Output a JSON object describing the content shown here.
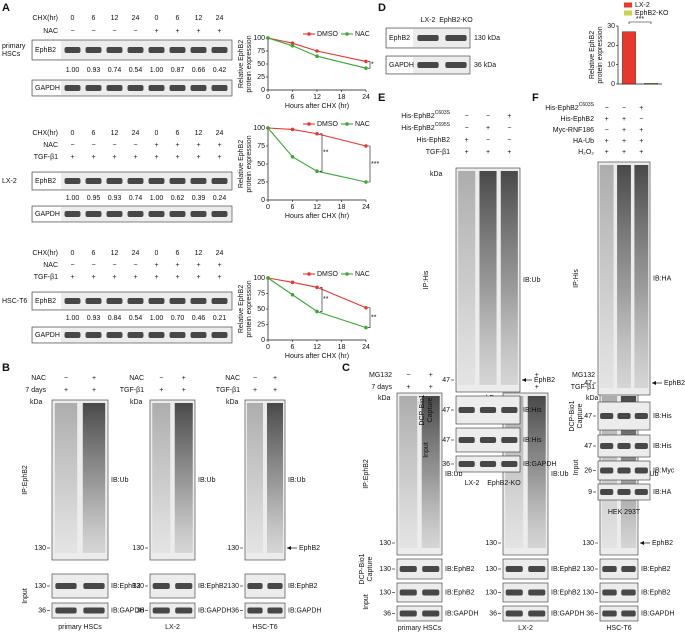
{
  "letters": [
    "A",
    "B",
    "C",
    "D",
    "E",
    "F"
  ],
  "panel_a": [
    {
      "cell": [
        "primary",
        "HSCs"
      ],
      "rows": [
        {
          "label": "CHX(hr)",
          "cells": [
            "0",
            "6",
            "12",
            "24",
            "0",
            "6",
            "12",
            "24"
          ]
        },
        {
          "label": "NAC",
          "cells": [
            "−",
            "−",
            "−",
            "−",
            "+",
            "+",
            "+",
            "+"
          ]
        }
      ],
      "boxes": [
        {
          "label": "EphB2"
        },
        {
          "label": "GAPDH"
        }
      ],
      "ratios": [
        "1.00",
        "0.93",
        "0.74",
        "0.54",
        "1.00",
        "0.87",
        "0.66",
        "0.42"
      ]
    },
    {
      "cell": "LX-2",
      "rows": [
        {
          "label": "CHX(hr)",
          "cells": [
            "0",
            "6",
            "12",
            "24",
            "0",
            "6",
            "12",
            "24"
          ]
        },
        {
          "label": "NAC",
          "cells": [
            "−",
            "−",
            "−",
            "−",
            "+",
            "+",
            "+",
            "+"
          ]
        },
        {
          "label": "TGF-β1",
          "cells": [
            "+",
            "+",
            "+",
            "+",
            "+",
            "+",
            "+",
            "+"
          ]
        }
      ],
      "boxes": [
        {
          "label": "EphB2"
        },
        {
          "label": "GAPDH"
        }
      ],
      "ratios": [
        "1.00",
        "0.95",
        "0.93",
        "0.74",
        "1.00",
        "0.62",
        "0.39",
        "0.24"
      ]
    },
    {
      "cell": "HSC-T6",
      "rows": [
        {
          "label": "CHX(hr)",
          "cells": [
            "0",
            "6",
            "12",
            "24",
            "0",
            "6",
            "12",
            "24"
          ]
        },
        {
          "label": "NAC",
          "cells": [
            "−",
            "−",
            "−",
            "−",
            "+",
            "+",
            "+",
            "+"
          ]
        },
        {
          "label": "TGF-β1",
          "cells": [
            "+",
            "+",
            "+",
            "+",
            "+",
            "+",
            "+",
            "+"
          ]
        }
      ],
      "boxes": [
        {
          "label": "EphB2"
        },
        {
          "label": "GAPDH"
        }
      ],
      "ratios": [
        "1.00",
        "0.93",
        "0.84",
        "0.54",
        "1.00",
        "0.70",
        "0.46",
        "0.21"
      ]
    }
  ],
  "panel_b": [
    {
      "rows": [
        {
          "label": "NAC",
          "cells": [
            "−",
            "+"
          ]
        },
        {
          "label": "7 days",
          "cells": [
            "+",
            "+"
          ]
        }
      ],
      "kda": "kDa",
      "boxes": [
        {
          "marker": "130",
          "right": "IB:Ub"
        },
        {
          "marker": "130",
          "right": "IB:EphB2"
        },
        {
          "marker": "36",
          "right": "IB:GAPDH"
        }
      ],
      "groups": [
        "IP:EphB2",
        "Input"
      ],
      "cell": "primary HSCs"
    },
    {
      "rows": [
        {
          "label": "NAC",
          "cells": [
            "−",
            "+"
          ]
        },
        {
          "label": "TGF-β1",
          "cells": [
            "+",
            "+"
          ]
        }
      ],
      "kda": "kDa",
      "boxes": [
        {
          "marker": "130",
          "right": "IB:Ub"
        },
        {
          "marker": "130",
          "right": "IB:EphB2"
        },
        {
          "marker": "36",
          "right": "IB:GAPDH"
        }
      ],
      "cell": "LX-2"
    },
    {
      "rows": [
        {
          "label": "NAC",
          "cells": [
            "−",
            "+"
          ]
        },
        {
          "label": "TGF-β1",
          "cells": [
            "+",
            "+"
          ]
        }
      ],
      "kda": "kDa",
      "boxes": [
        {
          "marker": "130",
          "right": "IB:Ub"
        },
        {
          "marker": "130",
          "right": "IB:EphB2"
        },
        {
          "marker": "36",
          "right": "IB:GAPDH"
        }
      ],
      "arrow": "EphB2",
      "cell": "HSC-T6"
    }
  ],
  "panel_c": [
    {
      "rows": [
        {
          "label": "MG132",
          "cells": [
            "−",
            "+"
          ]
        },
        {
          "label": "7 days",
          "cells": [
            "+",
            "+"
          ]
        }
      ],
      "kda": "kDa",
      "boxes": [
        {
          "marker": "130",
          "right": "IB:Ub"
        },
        {
          "marker": "130",
          "right": "IB:EphB2"
        },
        {
          "marker": "130",
          "right": "IB:EphB2"
        },
        {
          "marker": "36",
          "right": "IB:GAPDH"
        }
      ],
      "groups": [
        "IP:EphB2",
        [
          "DCP-Bio1",
          "Capture"
        ],
        "Input"
      ],
      "cell": "primary HSCs"
    },
    {
      "rows": [
        {
          "label": "MG132",
          "cells": [
            "−",
            "+"
          ]
        },
        {
          "label": "TGF-β1",
          "cells": [
            "+",
            "+"
          ]
        }
      ],
      "kda": "kDa",
      "boxes": [
        {
          "marker": "130",
          "right": "IB:Ub"
        },
        {
          "marker": "130",
          "right": "IB:EphB2"
        },
        {
          "marker": "130",
          "right": "IB:EphB2"
        },
        {
          "marker": "36",
          "right": "IB:GAPDH"
        }
      ],
      "cell": "LX-2"
    },
    {
      "rows": [
        {
          "label": "MG132",
          "cells": [
            "−",
            "+"
          ]
        },
        {
          "label": "TGF-β1",
          "cells": [
            "+",
            "+"
          ]
        }
      ],
      "kda": "kDa",
      "boxes": [
        {
          "marker": "130",
          "right": "IB:Ub"
        },
        {
          "marker": "130",
          "right": "IB:EphB2"
        },
        {
          "marker": "130",
          "right": "IB:EphB2"
        },
        {
          "marker": "36",
          "right": "IB:GAPDH"
        }
      ],
      "arrow": "EphB2",
      "cell": "HSC-T6"
    }
  ],
  "panel_d": {
    "rows": [
      {
        "cells": [
          "LX-2",
          "EphB2-KO"
        ]
      }
    ],
    "boxes": [
      {
        "label": "EphB2",
        "right": "130 kDa"
      },
      {
        "label": "GAPDH",
        "right": "36 kDa"
      }
    ]
  },
  "panel_e": {
    "rows": [
      {
        "label": {
          "base": "His-EphB2",
          "sup": "C603S"
        },
        "cells": [
          "−",
          "−",
          "+"
        ]
      },
      {
        "label": {
          "base": "His-EphB2",
          "sup": "C695S"
        },
        "cells": [
          "−",
          "+",
          "−"
        ]
      },
      {
        "label": "His-EphB2",
        "cells": [
          "+",
          "−",
          "−"
        ]
      },
      {
        "label": "TGF-β1",
        "cells": [
          "+",
          "+",
          "+"
        ]
      }
    ],
    "kda": "kDa",
    "boxes": [
      {
        "marker": "47",
        "right": "IB:Ub"
      },
      {
        "marker": "47",
        "right": "IB:His"
      },
      {
        "marker": "47",
        "right": "IB:His"
      },
      {
        "marker": "36",
        "right": "IB:GAPDH"
      }
    ],
    "arrow": "EphB2",
    "groups": [
      "IP:His",
      [
        "DCP-Bio1",
        "Capture"
      ],
      "Input"
    ],
    "lane_labels": [
      "LX-2",
      "EphB2-KO"
    ]
  },
  "panel_f": {
    "rows": [
      {
        "label": {
          "base": "His-EphB2",
          "sup": "C603S"
        },
        "cells": [
          "−",
          "−",
          "+"
        ]
      },
      {
        "label": "His-EphB2",
        "cells": [
          "+",
          "+",
          "−"
        ]
      },
      {
        "label": "Myc-RNF186",
        "cells": [
          "−",
          "+",
          "+"
        ]
      },
      {
        "label": "HA-Ub",
        "cells": [
          "+",
          "+",
          "+"
        ]
      },
      {
        "label": "H₂O₂",
        "cells": [
          "+",
          "+",
          "+"
        ]
      }
    ],
    "boxes": [
      {
        "marker": "47",
        "right": "IB:HA"
      },
      {
        "marker": "47",
        "right": "IB:His"
      },
      {
        "marker": "47",
        "right": "IB:His"
      },
      {
        "marker": "26",
        "right": "IB:Myc"
      },
      {
        "marker": "9",
        "right": "IB:HA"
      }
    ],
    "arrow": "EphB2",
    "groups": [
      "IP:His",
      [
        "DCP-Bio1",
        "Capture"
      ],
      "Input"
    ],
    "cell": "HEK 293T"
  },
  "chart_data": [
    {
      "type": "line",
      "x": [
        0,
        6,
        12,
        24
      ],
      "xlim": [
        0,
        24
      ],
      "xticks": [
        0,
        6,
        12,
        18,
        24
      ],
      "ylim": [
        0,
        100
      ],
      "yticks": [
        0,
        25,
        50,
        75,
        100
      ],
      "y_label": [
        "Relative EphB2",
        "protein expression"
      ],
      "x_label": "Hours after CHX (hr)",
      "series": [
        {
          "name": "DMSO",
          "color": "#e8372c",
          "values": [
            100,
            90,
            75,
            55
          ]
        },
        {
          "name": "NAC",
          "color": "#3aa935",
          "values": [
            100,
            85,
            65,
            42
          ]
        }
      ],
      "annotations": [
        "*"
      ]
    },
    {
      "type": "line",
      "x": [
        0,
        6,
        12,
        24
      ],
      "xlim": [
        0,
        24
      ],
      "xticks": [
        0,
        6,
        12,
        18,
        24
      ],
      "ylim": [
        0,
        100
      ],
      "yticks": [
        0,
        25,
        50,
        75,
        100
      ],
      "y_label": [
        "Relative EphB2",
        "protein expression"
      ],
      "x_label": "Hours after CHX (hr)",
      "series": [
        {
          "name": "DMSO",
          "color": "#e8372c",
          "values": [
            100,
            98,
            92,
            75
          ]
        },
        {
          "name": "NAC",
          "color": "#3aa935",
          "values": [
            100,
            60,
            40,
            25
          ]
        }
      ],
      "annotations": [
        "**",
        "***"
      ]
    },
    {
      "type": "line",
      "x": [
        0,
        6,
        12,
        24
      ],
      "xlim": [
        0,
        24
      ],
      "xticks": [
        0,
        6,
        12,
        18,
        24
      ],
      "ylim": [
        0,
        100
      ],
      "yticks": [
        0,
        25,
        50,
        75,
        100
      ],
      "y_label": [
        "Relative EphB2",
        "protein expression"
      ],
      "x_label": "Hours after CHX (hr)",
      "series": [
        {
          "name": "DMSO",
          "color": "#e8372c",
          "values": [
            100,
            93,
            85,
            52
          ]
        },
        {
          "name": "NAC",
          "color": "#3aa935",
          "values": [
            100,
            73,
            46,
            20
          ]
        }
      ],
      "annotations": [
        "**",
        "**"
      ]
    },
    {
      "type": "bar",
      "categories": [
        "LX-2",
        "EphB2-KO"
      ],
      "values": [
        27,
        0.4
      ],
      "colors": [
        "#e8372c",
        "#c8d44a"
      ],
      "ylim": [
        0,
        30
      ],
      "yticks": [
        0,
        10,
        20,
        30
      ],
      "y_label": [
        "Relative EphB2",
        "protein expression"
      ],
      "annotations": [
        "***"
      ]
    }
  ]
}
